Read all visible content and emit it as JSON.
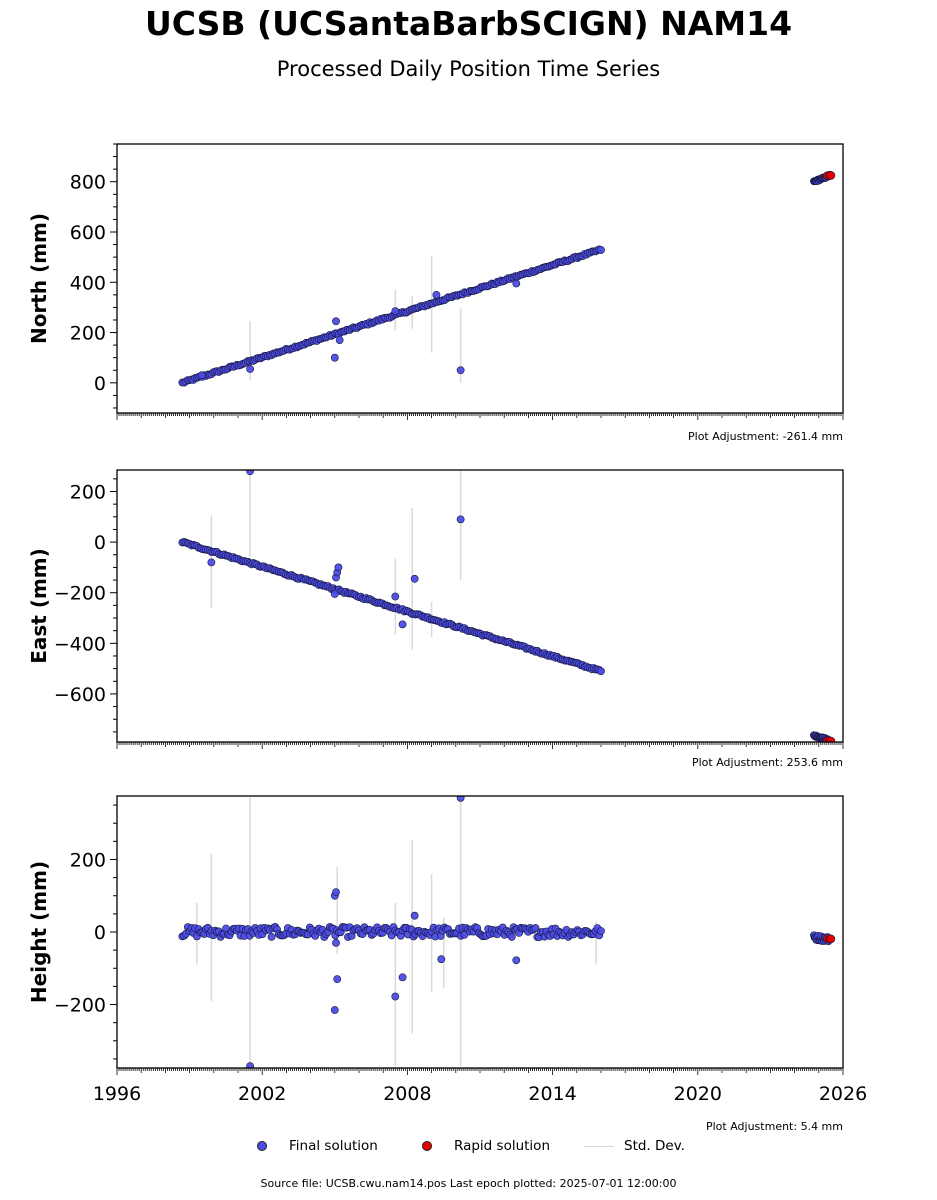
{
  "title": "UCSB (UCSantaBarbSCIGN) NAM14",
  "subtitle": "Processed Daily Position Time Series",
  "legend": {
    "final_label": "Final solution",
    "rapid_label": "Rapid solution",
    "std_label": "Std. Dev."
  },
  "footer": "Source file: UCSB.cwu.nam14.pos  Last epoch plotted: 2025-07-01 12:00:00",
  "colors": {
    "final": "#4c4ce6",
    "final_edge": "#16163a",
    "rapid": "#e60000",
    "std": "#d9d9d9"
  },
  "chart_data": [
    {
      "type": "scatter",
      "ylabel": "North (mm)",
      "adjustment": "Plot Adjustment: -261.4 mm",
      "xlim": [
        1996,
        2026
      ],
      "ylim": [
        -120,
        950
      ],
      "yticks": [
        0,
        200,
        400,
        600,
        800
      ],
      "ytick_labels": [
        "0",
        "200",
        "400",
        "600",
        "800"
      ],
      "final_trend": {
        "x": [
          1998.7,
          2016.0
        ],
        "y": [
          0,
          530
        ]
      },
      "final_trend_late": {
        "x": [
          2024.8,
          2025.4
        ],
        "y": [
          800,
          822
        ]
      },
      "rapid_points": {
        "x": [
          2025.35,
          2025.45,
          2025.5
        ],
        "y": [
          824,
          826,
          825
        ]
      },
      "outliers": {
        "x": [
          1999.5,
          2001.5,
          2005.0,
          2005.05,
          2005.2,
          2007.5,
          2009.2,
          2010.2,
          2012.5
        ],
        "y": [
          30,
          55,
          100,
          245,
          170,
          285,
          350,
          50,
          395
        ]
      },
      "std_dev": [
        {
          "x": 2001.5,
          "y0": 10,
          "y1": 245
        },
        {
          "x": 2007.5,
          "y0": 210,
          "y1": 370
        },
        {
          "x": 2008.2,
          "y0": 215,
          "y1": 345
        },
        {
          "x": 2009.0,
          "y0": 120,
          "y1": 505
        },
        {
          "x": 2010.2,
          "y0": 0,
          "y1": 295
        }
      ]
    },
    {
      "type": "scatter",
      "ylabel": "East (mm)",
      "adjustment": "Plot Adjustment: 253.6 mm",
      "xlim": [
        1996,
        2026
      ],
      "ylim": [
        -790,
        285
      ],
      "yticks": [
        -600,
        -400,
        -200,
        0,
        200
      ],
      "ytick_labels": [
        "−600",
        "−400",
        "−200",
        "0",
        "200"
      ],
      "final_trend": {
        "x": [
          1998.7,
          2016.0
        ],
        "y": [
          0,
          -510
        ]
      },
      "final_trend_late": {
        "x": [
          2024.8,
          2025.4
        ],
        "y": [
          -765,
          -780
        ]
      },
      "rapid_points": {
        "x": [
          2025.35,
          2025.45,
          2025.5
        ],
        "y": [
          -785,
          -788,
          -786
        ]
      },
      "outliers": {
        "x": [
          1999.9,
          2001.5,
          2005.0,
          2005.05,
          2005.1,
          2005.15,
          2007.5,
          2007.8,
          2008.3,
          2010.2
        ],
        "y": [
          -80,
          280,
          -205,
          -140,
          -120,
          -100,
          -215,
          -325,
          -145,
          90
        ]
      },
      "std_dev": [
        {
          "x": 1999.9,
          "y0": -260,
          "y1": 105
        },
        {
          "x": 2001.5,
          "y0": -60,
          "y1": 285
        },
        {
          "x": 2007.5,
          "y0": -365,
          "y1": -65
        },
        {
          "x": 2008.2,
          "y0": -425,
          "y1": 135
        },
        {
          "x": 2009.0,
          "y0": -375,
          "y1": -235
        },
        {
          "x": 2010.2,
          "y0": -150,
          "y1": 285
        }
      ]
    },
    {
      "type": "scatter",
      "ylabel": "Height (mm)",
      "adjustment": "Plot Adjustment: 5.4 mm",
      "xlim": [
        1996,
        2026
      ],
      "ylim": [
        -375,
        375
      ],
      "yticks": [
        -200,
        0,
        200
      ],
      "ytick_labels": [
        "−200",
        "0",
        "200"
      ],
      "xticks": [
        1996,
        2002,
        2008,
        2014,
        2020,
        2026
      ],
      "xtick_labels": [
        "1996",
        "2002",
        "2008",
        "2014",
        "2020",
        "2026"
      ],
      "final_trend": {
        "x": [
          1998.7,
          2016.0
        ],
        "y": [
          0,
          0
        ]
      },
      "final_trend_late": {
        "x": [
          2024.8,
          2025.4
        ],
        "y": [
          -15,
          -20
        ]
      },
      "rapid_points": {
        "x": [
          2025.35,
          2025.45,
          2025.5
        ],
        "y": [
          -18,
          -20,
          -19
        ]
      },
      "outliers": {
        "x": [
          2001.5,
          2005.0,
          2005.05,
          2005.1,
          2005.0,
          2005.05,
          2007.5,
          2007.8,
          2008.3,
          2009.4,
          2010.2,
          2012.5
        ],
        "y": [
          -370,
          100,
          110,
          -130,
          -215,
          -30,
          -178,
          -125,
          45,
          -75,
          370,
          -78
        ]
      },
      "std_dev": [
        {
          "x": 1999.3,
          "y0": -90,
          "y1": 80
        },
        {
          "x": 1999.9,
          "y0": -190,
          "y1": 215
        },
        {
          "x": 2001.5,
          "y0": -370,
          "y1": 370
        },
        {
          "x": 2005.1,
          "y0": -60,
          "y1": 180
        },
        {
          "x": 2007.5,
          "y0": -370,
          "y1": 80
        },
        {
          "x": 2008.2,
          "y0": -280,
          "y1": 255
        },
        {
          "x": 2009.0,
          "y0": -165,
          "y1": 160
        },
        {
          "x": 2009.5,
          "y0": -155,
          "y1": 40
        },
        {
          "x": 2010.2,
          "y0": -370,
          "y1": 370
        },
        {
          "x": 2015.8,
          "y0": -90,
          "y1": 30
        }
      ]
    }
  ]
}
